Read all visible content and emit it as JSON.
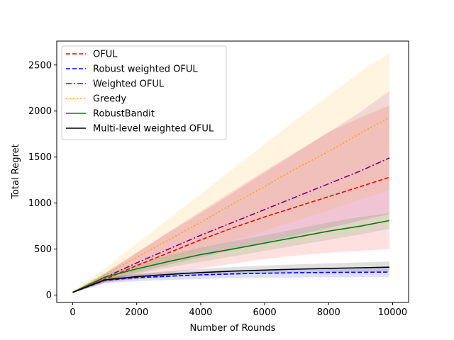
{
  "chart_data": {
    "type": "line",
    "title": "",
    "xlabel": "Number of Rounds",
    "ylabel": "Total Regret",
    "xlim": [
      -500,
      10500
    ],
    "ylim": [
      -80,
      2760
    ],
    "xticks": [
      0,
      2000,
      4000,
      6000,
      8000,
      10000
    ],
    "yticks": [
      0,
      500,
      1000,
      1500,
      2000,
      2500
    ],
    "grid": false,
    "legend_position": "top-left",
    "series": [
      {
        "name": "OFUL",
        "color": "#ff0000",
        "dash": "dashed",
        "x": [
          0,
          1000,
          2000,
          3000,
          4000,
          5000,
          6000,
          7000,
          8000,
          9000,
          9900
        ],
        "y": [
          30,
          170,
          320,
          460,
          600,
          730,
          850,
          960,
          1070,
          1180,
          1280
        ],
        "band_low": [
          25,
          130,
          180,
          240,
          290,
          340,
          390,
          430,
          460,
          480,
          500
        ],
        "band_high": [
          35,
          230,
          460,
          690,
          910,
          1130,
          1350,
          1560,
          1770,
          1930,
          2060
        ]
      },
      {
        "name": "Robust weighted OFUL",
        "color": "#0000ff",
        "dash": "dashed",
        "x": [
          0,
          1000,
          2000,
          3000,
          4000,
          5000,
          6000,
          7000,
          8000,
          9000,
          9900
        ],
        "y": [
          30,
          160,
          190,
          205,
          220,
          230,
          238,
          243,
          246,
          248,
          250
        ],
        "band_low": [
          25,
          130,
          150,
          165,
          175,
          183,
          188,
          192,
          195,
          197,
          198
        ],
        "band_high": [
          35,
          185,
          225,
          245,
          260,
          270,
          278,
          283,
          288,
          292,
          295
        ]
      },
      {
        "name": "Weighted OFUL",
        "color": "#800080",
        "dash": "dashdot",
        "x": [
          0,
          1000,
          2000,
          3000,
          4000,
          5000,
          6000,
          7000,
          8000,
          9000,
          9900
        ],
        "y": [
          30,
          190,
          350,
          500,
          650,
          790,
          930,
          1070,
          1210,
          1350,
          1490
        ],
        "band_low": [
          25,
          140,
          240,
          330,
          410,
          490,
          570,
          650,
          730,
          810,
          880
        ],
        "band_high": [
          35,
          240,
          460,
          680,
          890,
          1110,
          1330,
          1550,
          1770,
          1990,
          2220
        ]
      },
      {
        "name": "Greedy",
        "color": "#ffa500",
        "dash": "dotted",
        "x": [
          0,
          1000,
          2000,
          3000,
          4000,
          5000,
          6000,
          7000,
          8000,
          9000,
          9900
        ],
        "y": [
          30,
          220,
          410,
          600,
          790,
          990,
          1180,
          1380,
          1560,
          1760,
          1930
        ],
        "band_low": [
          25,
          150,
          260,
          370,
          480,
          590,
          700,
          810,
          920,
          1040,
          1140
        ],
        "band_high": [
          40,
          290,
          560,
          830,
          1100,
          1370,
          1640,
          1910,
          2170,
          2430,
          2630
        ]
      },
      {
        "name": "RobustBandit",
        "color": "#008000",
        "dash": "solid",
        "x": [
          0,
          1000,
          2000,
          3000,
          4000,
          5000,
          6000,
          7000,
          8000,
          9000,
          9900
        ],
        "y": [
          30,
          195,
          285,
          365,
          440,
          500,
          565,
          630,
          695,
          750,
          810
        ],
        "band_low": [
          25,
          160,
          230,
          300,
          360,
          420,
          480,
          540,
          600,
          660,
          720
        ],
        "band_high": [
          35,
          225,
          335,
          435,
          515,
          585,
          650,
          720,
          790,
          850,
          890
        ]
      },
      {
        "name": "Multi-level weighted OFUL",
        "color": "#000000",
        "dash": "solid",
        "x": [
          0,
          1000,
          2000,
          3000,
          4000,
          5000,
          6000,
          7000,
          8000,
          9000,
          9900
        ],
        "y": [
          30,
          165,
          200,
          225,
          245,
          260,
          272,
          282,
          290,
          297,
          303
        ],
        "band_low": [
          25,
          145,
          175,
          195,
          210,
          222,
          232,
          240,
          246,
          250,
          254
        ],
        "band_high": [
          35,
          190,
          230,
          262,
          285,
          305,
          320,
          333,
          345,
          355,
          365
        ]
      }
    ]
  }
}
